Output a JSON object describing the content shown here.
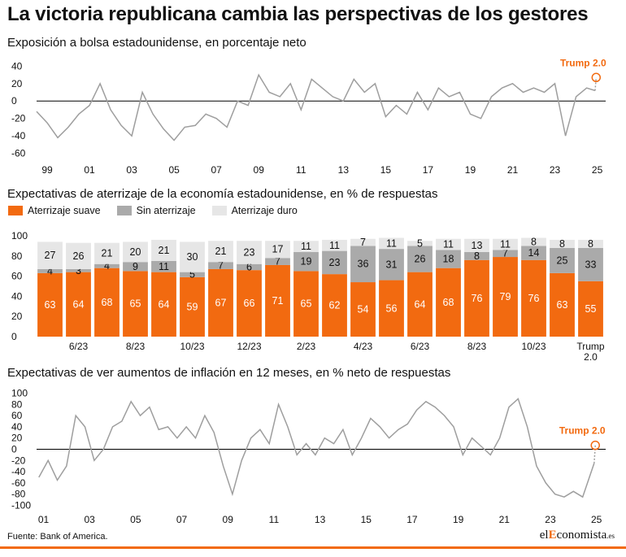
{
  "title": "La victoria republicana cambia las perspectivas de los gestores",
  "source": "Fuente: Bank of America.",
  "logo": {
    "pre": "el",
    "accent": "E",
    "post": "conomista",
    "suffix": ".es"
  },
  "colors": {
    "orange": "#f26a10",
    "gray": "#aaaaaa",
    "light": "#e6e6e6",
    "line": "#9e9e9e"
  },
  "chart_data": [
    {
      "type": "line",
      "subtitle": "Exposición a bolsa estadounidense, en porcentaje neto",
      "yticks": [
        40,
        20,
        0,
        -20,
        -40,
        -60
      ],
      "ylim": [
        -66,
        45
      ],
      "xlim": [
        1998.5,
        2025.4
      ],
      "xticks": [
        "99",
        "01",
        "03",
        "05",
        "07",
        "09",
        "11",
        "13",
        "15",
        "17",
        "19",
        "21",
        "23",
        "25"
      ],
      "xtick_years": [
        1999,
        2001,
        2003,
        2005,
        2007,
        2009,
        2011,
        2013,
        2015,
        2017,
        2019,
        2021,
        2023,
        2025
      ],
      "annotation": "Trump 2.0",
      "x": [
        1998.5,
        1999.0,
        1999.5,
        2000.0,
        2000.5,
        2001.0,
        2001.5,
        2002.0,
        2002.5,
        2003.0,
        2003.5,
        2004.0,
        2004.5,
        2005.0,
        2005.5,
        2006.0,
        2006.5,
        2007.0,
        2007.5,
        2008.0,
        2008.5,
        2009.0,
        2009.5,
        2010.0,
        2010.5,
        2011.0,
        2011.5,
        2012.0,
        2012.5,
        2013.0,
        2013.5,
        2014.0,
        2014.5,
        2015.0,
        2015.5,
        2016.0,
        2016.5,
        2017.0,
        2017.5,
        2018.0,
        2018.5,
        2019.0,
        2019.5,
        2020.0,
        2020.5,
        2021.0,
        2021.5,
        2022.0,
        2022.5,
        2023.0,
        2023.5,
        2024.0,
        2024.5,
        2024.9
      ],
      "y": [
        -12,
        -25,
        -42,
        -30,
        -15,
        -5,
        20,
        -10,
        -28,
        -40,
        10,
        -15,
        -32,
        -45,
        -30,
        -28,
        -15,
        -20,
        -30,
        0,
        -5,
        30,
        10,
        5,
        20,
        -10,
        25,
        15,
        5,
        0,
        25,
        10,
        20,
        -18,
        -5,
        -15,
        10,
        -10,
        15,
        5,
        10,
        -15,
        -20,
        5,
        15,
        20,
        10,
        15,
        10,
        20,
        -40,
        5,
        15,
        12
      ],
      "trump_point": [
        2024.95,
        27
      ],
      "trump_tail": [
        2024.95,
        12
      ]
    },
    {
      "type": "bar",
      "subtitle": "Expectativas de aterrizaje de la economía estadounidense, en % de respuestas",
      "legend": [
        "Aterrizaje suave",
        "Sin aterrizaje",
        "Aterrizaje duro"
      ],
      "yticks": [
        100,
        80,
        60,
        40,
        20,
        0
      ],
      "ylim": [
        0,
        100
      ],
      "tick_labels": [
        "6/23",
        "8/23",
        "10/23",
        "12/23",
        "2/23",
        "4/23",
        "6/23",
        "8/23",
        "10/23",
        "Trump",
        "2.0"
      ],
      "tick_bar_index": [
        1,
        3,
        5,
        7,
        9,
        11,
        13,
        15,
        17,
        19
      ],
      "series": [
        {
          "name": "Aterrizaje suave",
          "values": [
            63,
            64,
            68,
            65,
            64,
            59,
            67,
            66,
            71,
            65,
            62,
            54,
            56,
            64,
            68,
            76,
            79,
            76,
            63,
            55
          ]
        },
        {
          "name": "Sin aterrizaje",
          "values": [
            4,
            3,
            4,
            9,
            11,
            5,
            7,
            6,
            7,
            19,
            23,
            36,
            31,
            26,
            18,
            8,
            7,
            14,
            25,
            33
          ]
        },
        {
          "name": "Aterrizaje duro",
          "values": [
            27,
            26,
            21,
            20,
            21,
            30,
            21,
            23,
            17,
            11,
            11,
            7,
            11,
            5,
            11,
            13,
            11,
            8,
            8,
            8
          ]
        }
      ]
    },
    {
      "type": "line",
      "subtitle": "Expectativas de ver aumentos de inflación en 12 meses, en % neto de respuestas",
      "yticks": [
        100,
        80,
        60,
        40,
        20,
        0,
        -20,
        -40,
        -60,
        -80,
        -100
      ],
      "ylim": [
        -105,
        105
      ],
      "xlim": [
        2000.7,
        2025.4
      ],
      "xticks": [
        "01",
        "03",
        "05",
        "07",
        "09",
        "11",
        "13",
        "15",
        "17",
        "19",
        "21",
        "23",
        "25"
      ],
      "xtick_years": [
        2001,
        2003,
        2005,
        2007,
        2009,
        2011,
        2013,
        2015,
        2017,
        2019,
        2021,
        2023,
        2025
      ],
      "annotation": "Trump 2.0",
      "x": [
        2000.8,
        2001.2,
        2001.6,
        2002.0,
        2002.4,
        2002.8,
        2003.2,
        2003.6,
        2004.0,
        2004.4,
        2004.8,
        2005.2,
        2005.6,
        2006.0,
        2006.4,
        2006.8,
        2007.2,
        2007.6,
        2008.0,
        2008.4,
        2008.8,
        2009.2,
        2009.6,
        2010.0,
        2010.4,
        2010.8,
        2011.2,
        2011.6,
        2012.0,
        2012.4,
        2012.8,
        2013.2,
        2013.6,
        2014.0,
        2014.4,
        2014.8,
        2015.2,
        2015.6,
        2016.0,
        2016.4,
        2016.8,
        2017.2,
        2017.6,
        2018.0,
        2018.4,
        2018.8,
        2019.2,
        2019.6,
        2020.0,
        2020.4,
        2020.8,
        2021.2,
        2021.6,
        2022.0,
        2022.4,
        2022.8,
        2023.2,
        2023.6,
        2024.0,
        2024.4,
        2024.9
      ],
      "y": [
        -50,
        -20,
        -55,
        -30,
        60,
        40,
        -20,
        0,
        40,
        50,
        85,
        60,
        75,
        35,
        40,
        20,
        40,
        20,
        60,
        30,
        -30,
        -80,
        -20,
        20,
        35,
        10,
        80,
        40,
        -10,
        10,
        -10,
        20,
        10,
        35,
        -10,
        20,
        55,
        40,
        20,
        35,
        45,
        70,
        85,
        75,
        60,
        40,
        -10,
        20,
        5,
        -10,
        20,
        75,
        90,
        40,
        -30,
        -60,
        -80,
        -85,
        -75,
        -85,
        -25
      ],
      "trump_point": [
        2024.95,
        7
      ],
      "trump_tail": [
        2024.95,
        -25
      ]
    }
  ]
}
